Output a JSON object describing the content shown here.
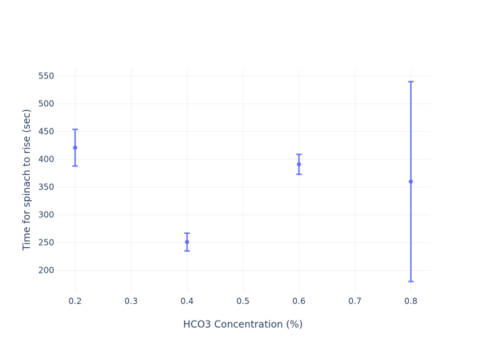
{
  "chart_data": {
    "type": "scatter",
    "title": "",
    "xlabel": "HCO3 Concentration (%)",
    "ylabel": "Time for spinach to rise (sec)",
    "xlim": [
      0.165,
      0.835
    ],
    "ylim": [
      162,
      562
    ],
    "x_ticks": [
      0.2,
      0.3,
      0.4,
      0.5,
      0.6,
      0.7,
      0.8
    ],
    "x_tick_labels": [
      "0.2",
      "0.3",
      "0.4",
      "0.5",
      "0.6",
      "0.7",
      "0.8"
    ],
    "y_ticks": [
      200,
      250,
      300,
      350,
      400,
      450,
      500,
      550
    ],
    "y_tick_labels": [
      "200",
      "250",
      "300",
      "350",
      "400",
      "450",
      "500",
      "550"
    ],
    "grid": true,
    "series": [
      {
        "color": "#636efa",
        "points": [
          {
            "x": 0.2,
            "y": 421,
            "error": 33
          },
          {
            "x": 0.4,
            "y": 251,
            "error": 16
          },
          {
            "x": 0.6,
            "y": 391,
            "error": 18
          },
          {
            "x": 0.8,
            "y": 360,
            "error": 180
          }
        ]
      }
    ]
  }
}
